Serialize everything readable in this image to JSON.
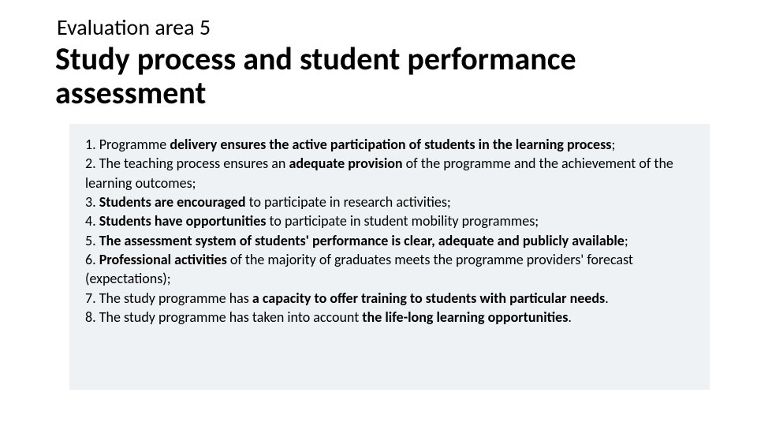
{
  "pretitle": "Evaluation area 5",
  "title": "Study process and student performance assessment",
  "items": [
    {
      "num": "1.",
      "pre": "Programme ",
      "bold": "delivery ensures the active participation of students in the learning process",
      "post": ";"
    },
    {
      "num": "2.",
      "pre": "The teaching process ensures an ",
      "bold": "adequate provision",
      "post": " of the programme and the achievement of the learning outcomes;"
    },
    {
      "num": "3.",
      "pre": "",
      "bold": "Students are encouraged",
      "post": " to participate in research activities;"
    },
    {
      "num": "4.",
      "pre": "",
      "bold": "Students have opportunities",
      "post": " to participate in student mobility programmes;"
    },
    {
      "num": "5.",
      "pre": "",
      "bold": "The assessment system of students' performance is clear, adequate and publicly available",
      "post": ";"
    },
    {
      "num": "6.",
      "pre": "",
      "bold": "Professional activities",
      "post": " of the majority of graduates meets the programme providers' forecast (expectations);"
    },
    {
      "num": "7.",
      "pre": "The study programme has ",
      "bold": "a capacity to offer training to students with particular needs",
      "post": "."
    },
    {
      "num": "8.",
      "pre": "The study programme has taken into account ",
      "bold": "the life-long learning opportunities",
      "post": "."
    }
  ],
  "styles": {
    "background": "#ffffff",
    "box_background": "#eef2f5",
    "text_color": "#000000",
    "pretitle_fontsize": 28,
    "title_fontsize": 40,
    "body_fontsize": 18
  }
}
